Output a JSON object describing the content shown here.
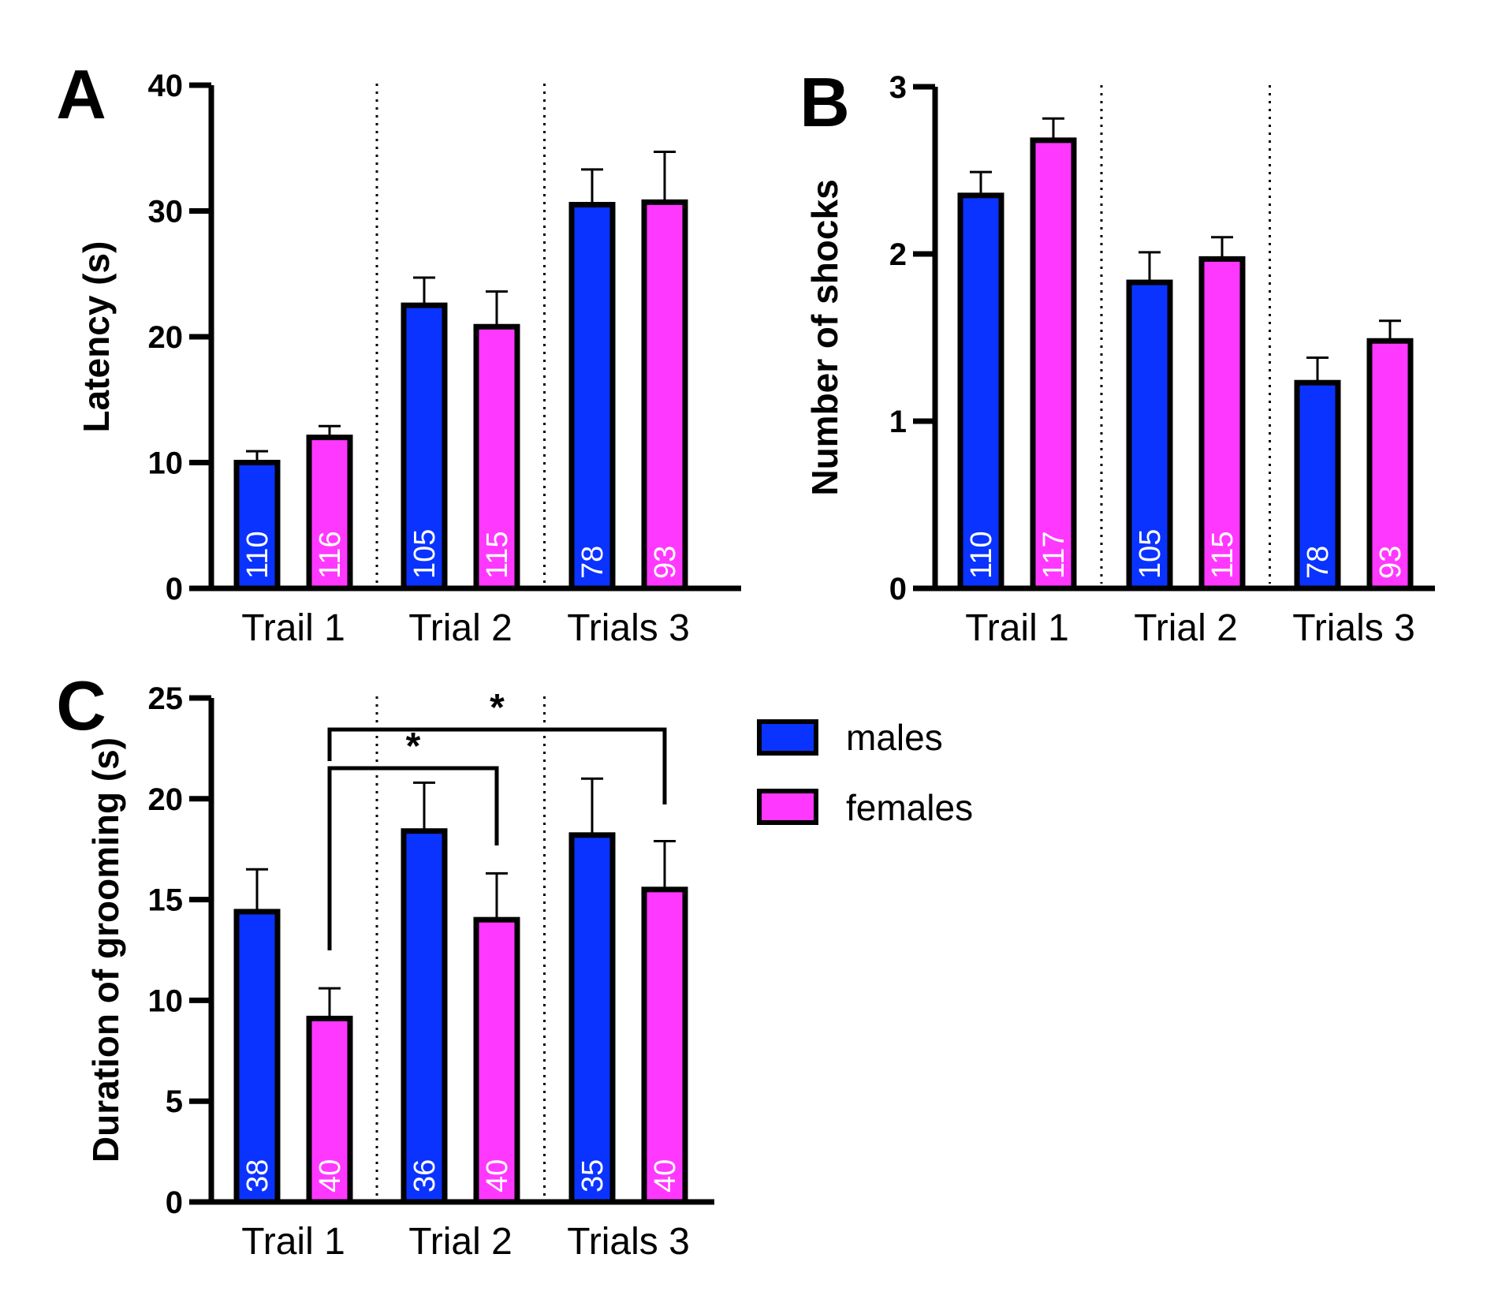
{
  "colors": {
    "males": "#0a33ff",
    "females": "#ff38ff",
    "axis": "#000000",
    "nlabel": "#ffffff"
  },
  "legend": [
    {
      "name": "males",
      "label": "males",
      "color": "#0a33ff"
    },
    {
      "name": "females",
      "label": "females",
      "color": "#ff38ff"
    }
  ],
  "chart_data": [
    {
      "id": "A",
      "panel_label": "A",
      "type": "bar",
      "ylabel": "Latency (s)",
      "ylim": [
        0,
        40
      ],
      "yticks": [
        0,
        10,
        20,
        30,
        40
      ],
      "categories": [
        "Trail 1",
        "Trial 2",
        "Trials 3"
      ],
      "series": [
        {
          "name": "males",
          "values": [
            10.0,
            22.5,
            30.5
          ],
          "errors": [
            0.9,
            2.2,
            2.8
          ],
          "n": [
            "110",
            "105",
            "78"
          ]
        },
        {
          "name": "females",
          "values": [
            12.0,
            20.8,
            30.7
          ],
          "errors": [
            0.9,
            2.8,
            4.0
          ],
          "n": [
            "116",
            "115",
            "93"
          ]
        }
      ],
      "significance": []
    },
    {
      "id": "B",
      "panel_label": "B",
      "type": "bar",
      "ylabel": "Number of shocks",
      "ylim": [
        0,
        3
      ],
      "yticks": [
        0,
        1,
        2,
        3
      ],
      "categories": [
        "Trail 1",
        "Trial 2",
        "Trials 3"
      ],
      "series": [
        {
          "name": "males",
          "values": [
            2.35,
            1.83,
            1.23
          ],
          "errors": [
            0.14,
            0.18,
            0.15
          ],
          "n": [
            "110",
            "105",
            "78"
          ]
        },
        {
          "name": "females",
          "values": [
            2.68,
            1.97,
            1.48
          ],
          "errors": [
            0.13,
            0.13,
            0.12
          ],
          "n": [
            "117",
            "115",
            "93"
          ]
        }
      ],
      "significance": []
    },
    {
      "id": "C",
      "panel_label": "C",
      "type": "bar",
      "ylabel": "Duration of grooming (s)",
      "ylim": [
        0,
        25
      ],
      "yticks": [
        0,
        5,
        10,
        15,
        20,
        25
      ],
      "categories": [
        "Trail 1",
        "Trial 2",
        "Trials 3"
      ],
      "series": [
        {
          "name": "males",
          "values": [
            14.4,
            18.4,
            18.2
          ],
          "errors": [
            2.1,
            2.4,
            2.8
          ],
          "n": [
            "38",
            "36",
            "35"
          ]
        },
        {
          "name": "females",
          "values": [
            9.1,
            14.0,
            15.5
          ],
          "errors": [
            1.5,
            2.3,
            2.4
          ],
          "n": [
            "40",
            "40",
            "40"
          ]
        }
      ],
      "significance": [
        {
          "from": [
            0,
            1
          ],
          "to": [
            1,
            1
          ],
          "label": "*",
          "level": 0
        },
        {
          "from": [
            0,
            1
          ],
          "to": [
            2,
            1
          ],
          "label": "*",
          "level": 1
        }
      ]
    }
  ]
}
